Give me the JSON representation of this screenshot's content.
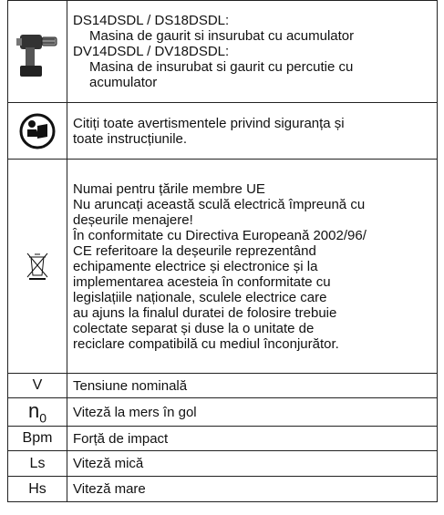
{
  "rows": [
    {
      "lines": [
        "DS14DSDL / DS18DSDL:",
        "Masina de gaurit si insurubat cu acumulator",
        "DV14DSDL / DV18DSDL:",
        "Masina de insurubat si gaurit cu percutie cu",
        "acumulator"
      ]
    },
    {
      "lines": [
        "Citiți toate avertismentele privind siguranța și",
        "toate instrucțiunile."
      ]
    },
    {
      "lines": [
        "Numai pentru țările membre UE",
        "Nu aruncați această sculă electrică împreună cu",
        "deșeurile menajere!",
        "În conformitate cu Directiva Europeană 2002/96/",
        "CE referitoare la deșeurile reprezentând",
        "echipamente electrice și electronice și la",
        "implementarea acesteia în conformitate cu",
        "legislațiile naționale, sculele electrice care",
        "au ajuns la finalul duratei de folosire trebuie",
        "colectate separat și duse la o unitate de",
        "reciclare compatibilă cu mediul înconjurător."
      ]
    },
    {
      "symbol": "V",
      "lines": [
        "Tensiune nominală"
      ]
    },
    {
      "symbol": "n",
      "symbol_sub": "0",
      "lines": [
        "Viteză la mers în gol"
      ]
    },
    {
      "symbol": "Bpm",
      "lines": [
        "Forță de impact"
      ]
    },
    {
      "symbol": "Ls",
      "lines": [
        "Viteză mică"
      ]
    },
    {
      "symbol": "Hs",
      "lines": [
        "Viteză mare"
      ]
    }
  ]
}
